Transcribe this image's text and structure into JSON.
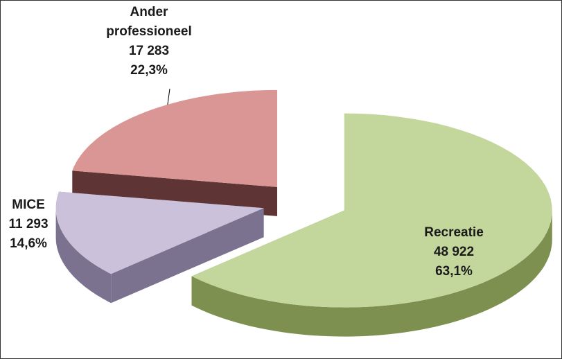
{
  "chart_data": {
    "type": "pie3d",
    "categories": [
      "Recreatie",
      "MICE",
      "Ander professioneel"
    ],
    "values": [
      48922,
      11293,
      17283
    ],
    "value_labels": [
      "48 922",
      "11 293",
      "17 283"
    ],
    "percent_values": [
      63.1,
      14.6,
      22.3
    ],
    "percent_labels": [
      "63,1%",
      "14,6%",
      "22,3%"
    ],
    "colors": [
      "#c3d69b",
      "#ccc1da",
      "#d99694"
    ],
    "side_colors": [
      "#7d9050",
      "#7b7290",
      "#5e3434"
    ]
  }
}
